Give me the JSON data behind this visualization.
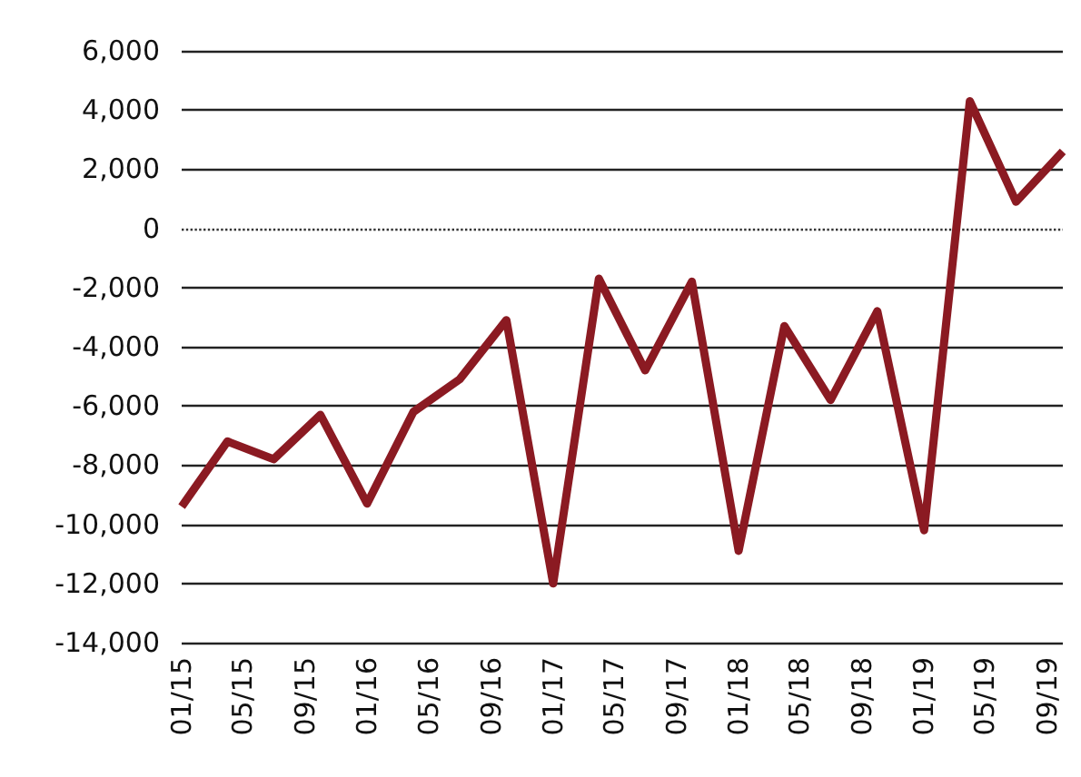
{
  "chart_data": {
    "type": "line",
    "x": [
      "2015-01",
      "2015-04",
      "2015-07",
      "2015-10",
      "2016-01",
      "2016-04",
      "2016-07",
      "2016-10",
      "2017-01",
      "2017-04",
      "2017-07",
      "2017-10",
      "2018-01",
      "2018-04",
      "2018-07",
      "2018-10",
      "2019-01",
      "2019-04",
      "2019-07",
      "2019-10"
    ],
    "series": [
      {
        "color": "#8b1a22",
        "values": [
          -9400,
          -7200,
          -7800,
          -6300,
          -9300,
          -6200,
          -5100,
          -3100,
          -12000,
          -1700,
          -4800,
          -1800,
          -10900,
          -3300,
          -5800,
          -2800,
          -10200,
          4300,
          900,
          2600
        ]
      }
    ],
    "xlim": [
      "2015-01",
      "2019-10"
    ],
    "xticks": [
      {
        "value": "2015-01",
        "label": "01/15"
      },
      {
        "value": "2015-05",
        "label": "05/15"
      },
      {
        "value": "2015-09",
        "label": "09/15"
      },
      {
        "value": "2016-01",
        "label": "01/16"
      },
      {
        "value": "2016-05",
        "label": "05/16"
      },
      {
        "value": "2016-09",
        "label": "09/16"
      },
      {
        "value": "2017-01",
        "label": "01/17"
      },
      {
        "value": "2017-05",
        "label": "05/17"
      },
      {
        "value": "2017-09",
        "label": "09/17"
      },
      {
        "value": "2018-01",
        "label": "01/18"
      },
      {
        "value": "2018-05",
        "label": "05/18"
      },
      {
        "value": "2018-09",
        "label": "09/18"
      },
      {
        "value": "2019-01",
        "label": "01/19"
      },
      {
        "value": "2019-05",
        "label": "05/19"
      },
      {
        "value": "2019-09",
        "label": "09/19"
      }
    ],
    "ylim": [
      -14000,
      6000
    ],
    "yticks": [
      {
        "value": -14000,
        "label": "-14,000"
      },
      {
        "value": -12000,
        "label": "-12,000"
      },
      {
        "value": -10000,
        "label": "-10,000"
      },
      {
        "value": -8000,
        "label": "-8,000"
      },
      {
        "value": -6000,
        "label": "-6,000"
      },
      {
        "value": -4000,
        "label": "-4,000"
      },
      {
        "value": -2000,
        "label": "-2,000"
      },
      0,
      {
        "value": 2000,
        "label": "2,000"
      },
      {
        "value": 4000,
        "label": "4,000"
      },
      {
        "value": 6000,
        "label": "6,000"
      }
    ],
    "grid": "y",
    "marker": "none",
    "line_style": "solid",
    "ref_lines": [
      {
        "axis": "y",
        "value": 0,
        "line_style": "dotted",
        "color": "#333333"
      }
    ]
  }
}
